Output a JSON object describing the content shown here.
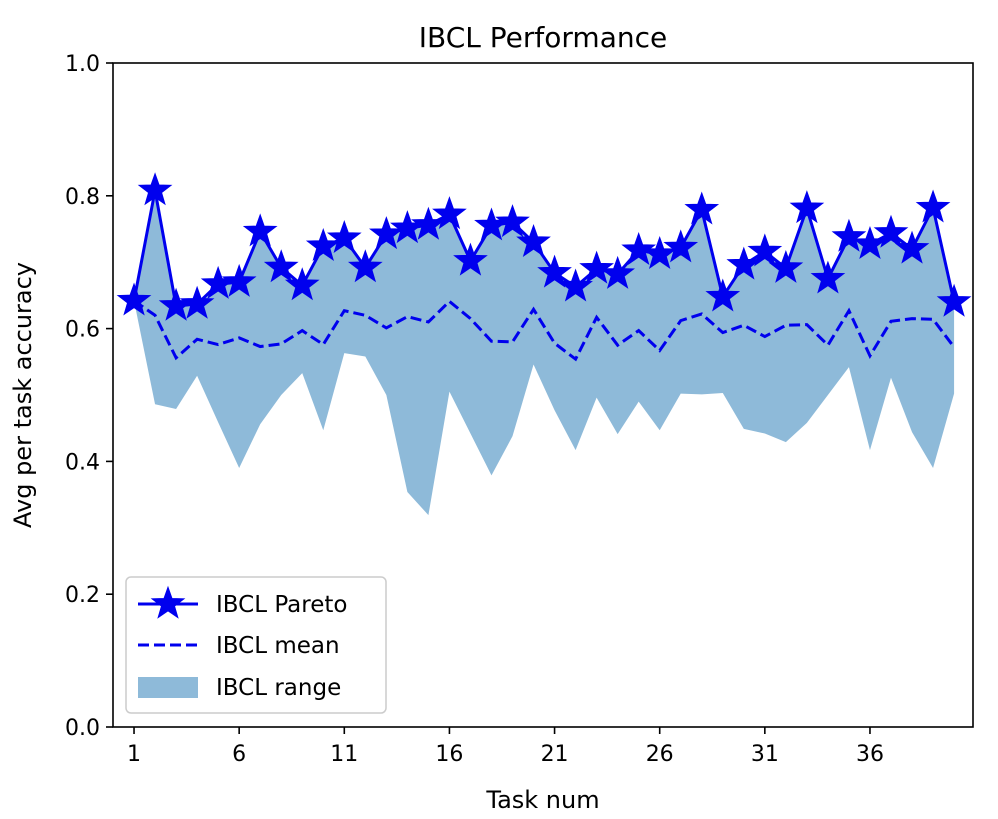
{
  "chart_data": {
    "type": "line",
    "title": "IBCL Performance",
    "xlabel": "Task num",
    "ylabel": "Avg per task accuracy",
    "xlim": [
      0,
      40.9
    ],
    "ylim": [
      0.0,
      1.0
    ],
    "xticks": [
      1,
      6,
      11,
      16,
      21,
      26,
      31,
      36
    ],
    "yticks": [
      0.0,
      0.2,
      0.4,
      0.6,
      0.8,
      1.0
    ],
    "ytick_labels": [
      "0.0",
      "0.2",
      "0.4",
      "0.6",
      "0.8",
      "1.0"
    ],
    "grid": false,
    "legend": {
      "position": "lower-left"
    },
    "x": [
      1,
      2,
      3,
      4,
      5,
      6,
      7,
      8,
      9,
      10,
      11,
      12,
      13,
      14,
      15,
      16,
      17,
      18,
      19,
      20,
      21,
      22,
      23,
      24,
      25,
      26,
      27,
      28,
      29,
      30,
      31,
      32,
      33,
      34,
      35,
      36,
      37,
      38,
      39,
      40
    ],
    "series": [
      {
        "name": "IBCL Pareto",
        "style": "line-star",
        "color": "#0000ee",
        "values": [
          0.642,
          0.808,
          0.634,
          0.637,
          0.667,
          0.67,
          0.746,
          0.692,
          0.665,
          0.724,
          0.736,
          0.692,
          0.742,
          0.751,
          0.756,
          0.772,
          0.702,
          0.755,
          0.76,
          0.73,
          0.684,
          0.663,
          0.69,
          0.682,
          0.718,
          0.712,
          0.722,
          0.779,
          0.648,
          0.696,
          0.716,
          0.691,
          0.781,
          0.675,
          0.738,
          0.727,
          0.744,
          0.72,
          0.782,
          0.64
        ]
      },
      {
        "name": "IBCL mean",
        "style": "dashed",
        "color": "#0000ee",
        "values": [
          0.642,
          0.62,
          0.556,
          0.584,
          0.576,
          0.586,
          0.573,
          0.577,
          0.597,
          0.576,
          0.627,
          0.62,
          0.601,
          0.618,
          0.61,
          0.641,
          0.615,
          0.581,
          0.58,
          0.629,
          0.578,
          0.554,
          0.617,
          0.575,
          0.597,
          0.567,
          0.612,
          0.622,
          0.594,
          0.605,
          0.588,
          0.605,
          0.606,
          0.575,
          0.627,
          0.559,
          0.611,
          0.615,
          0.614,
          0.572
        ]
      },
      {
        "name": "IBCL range",
        "style": "fill-between",
        "color": "#8ebad9",
        "upper": [
          0.642,
          0.808,
          0.634,
          0.637,
          0.667,
          0.67,
          0.746,
          0.692,
          0.665,
          0.724,
          0.736,
          0.692,
          0.742,
          0.751,
          0.756,
          0.772,
          0.702,
          0.755,
          0.76,
          0.73,
          0.684,
          0.663,
          0.69,
          0.682,
          0.718,
          0.712,
          0.722,
          0.779,
          0.648,
          0.696,
          0.716,
          0.691,
          0.781,
          0.675,
          0.738,
          0.727,
          0.744,
          0.72,
          0.782,
          0.64
        ],
        "lower": [
          0.642,
          0.486,
          0.479,
          0.529,
          0.459,
          0.39,
          0.456,
          0.5,
          0.533,
          0.447,
          0.563,
          0.558,
          0.5,
          0.354,
          0.319,
          0.505,
          0.442,
          0.379,
          0.438,
          0.546,
          0.477,
          0.417,
          0.496,
          0.441,
          0.49,
          0.447,
          0.502,
          0.501,
          0.503,
          0.449,
          0.442,
          0.429,
          0.458,
          0.5,
          0.542,
          0.417,
          0.526,
          0.444,
          0.39,
          0.502
        ]
      }
    ]
  }
}
